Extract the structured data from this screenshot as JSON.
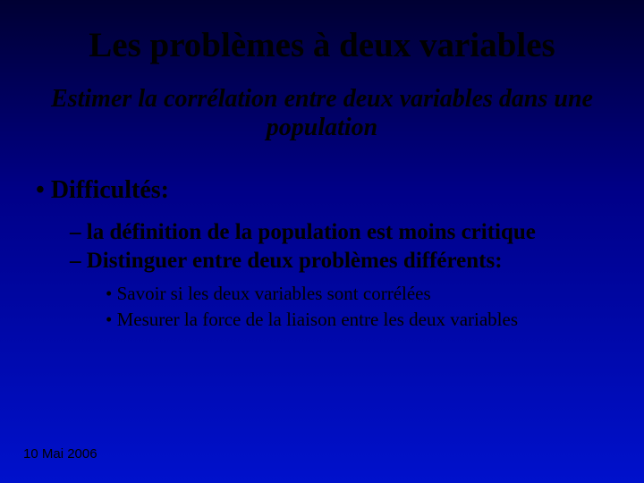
{
  "slide": {
    "background": "linear-gradient(to bottom, #000033 0%, #000088 40%, #0011cc 100%)",
    "text_color": "#000000",
    "title": {
      "text": "Les problèmes à deux variables",
      "fontsize": 39
    },
    "subtitle": {
      "text": "Estimer la corrélation entre deux variables dans une population",
      "fontsize": 28
    },
    "bullets_l1": {
      "label": "Difficultés:",
      "fontsize": 28
    },
    "bullets_l2": [
      {
        "text": " la définition de la  population est moins critique"
      },
      {
        "text": "Distinguer entre deux problèmes différents:"
      }
    ],
    "bullets_l2_fontsize": 25,
    "bullets_l3": [
      {
        "text": "Savoir si les deux variables sont corrélées"
      },
      {
        "text": "Mesurer la force de la liaison entre les deux variables"
      }
    ],
    "bullets_l3_fontsize": 21,
    "footer": {
      "text": "10 Mai 2006",
      "fontsize": 15
    }
  }
}
